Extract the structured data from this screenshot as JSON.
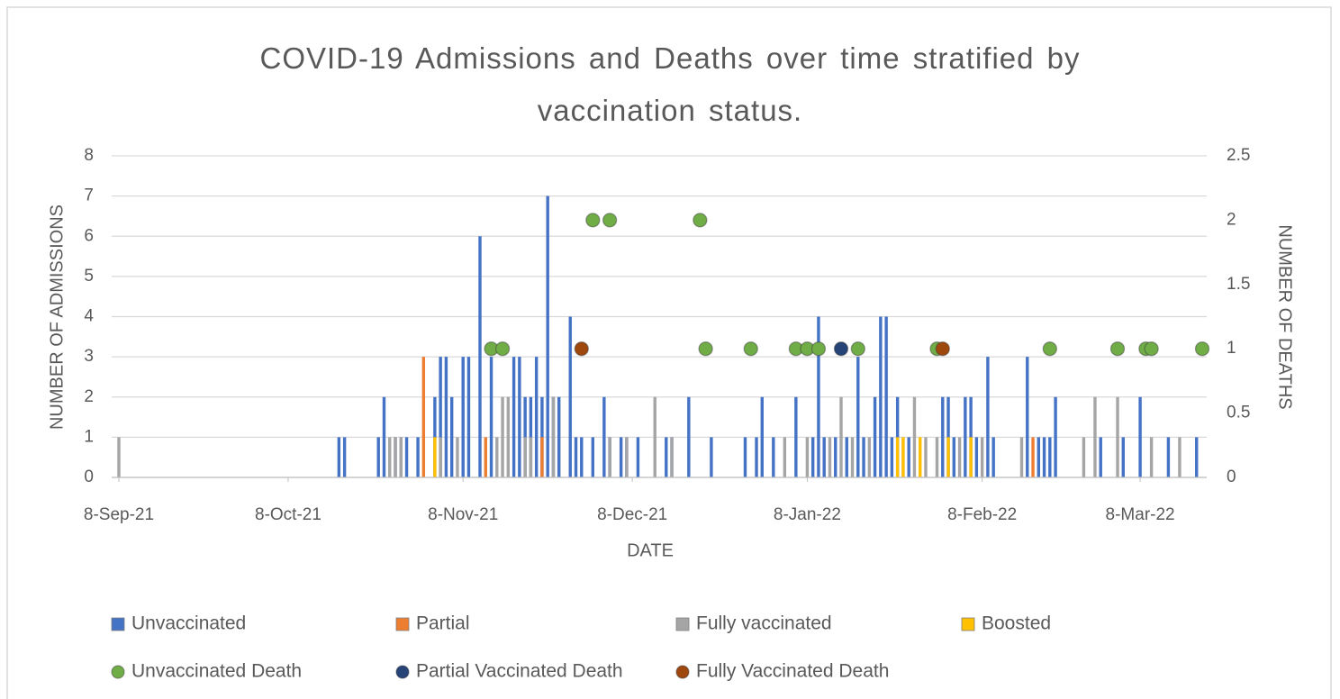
{
  "chart_data": {
    "type": "bar",
    "title": "COVID-19 Admissions and Deaths over time stratified by vaccination status.",
    "x_label": "DATE",
    "y_label": "NUMBER OF ADMISSIONS",
    "y2_label": "NUMBER OF DEATHS",
    "xlim": [
      "2021-09-08",
      "2022-03-19"
    ],
    "xticks": [
      {
        "value": "2021-09-08",
        "label": "8-Sep-21"
      },
      {
        "value": "2021-10-08",
        "label": "8-Oct-21"
      },
      {
        "value": "2021-11-08",
        "label": "8-Nov-21"
      },
      {
        "value": "2021-12-08",
        "label": "8-Dec-21"
      },
      {
        "value": "2022-01-08",
        "label": "8-Jan-22"
      },
      {
        "value": "2022-02-08",
        "label": "8-Feb-22"
      },
      {
        "value": "2022-03-08",
        "label": "8-Mar-22"
      }
    ],
    "ylim": [
      0,
      8
    ],
    "yticks": [
      0,
      1,
      2,
      3,
      4,
      5,
      6,
      7,
      8
    ],
    "y2lim": [
      0,
      2.5
    ],
    "y2ticks": [
      0,
      0.5,
      1,
      1.5,
      2,
      2.5
    ],
    "grid": true,
    "legend": "bottom",
    "series": [
      {
        "name": "Unvaccinated",
        "type": "bar",
        "color": "#4472c4",
        "x": [
          "2021-10-17",
          "2021-10-18",
          "2021-10-24",
          "2021-10-25",
          "2021-10-27",
          "2021-10-28",
          "2021-10-29",
          "2021-10-31",
          "2021-11-03",
          "2021-11-04",
          "2021-11-05",
          "2021-11-06",
          "2021-11-08",
          "2021-11-09",
          "2021-11-11",
          "2021-11-13",
          "2021-11-17",
          "2021-11-18",
          "2021-11-19",
          "2021-11-20",
          "2021-11-21",
          "2021-11-22",
          "2021-11-23",
          "2021-11-24",
          "2021-11-25",
          "2021-11-27",
          "2021-11-28",
          "2021-11-29",
          "2021-12-01",
          "2021-12-03",
          "2021-12-04",
          "2021-12-06",
          "2021-12-07",
          "2021-12-09",
          "2021-12-14",
          "2021-12-15",
          "2021-12-18",
          "2021-12-22",
          "2021-12-28",
          "2021-12-30",
          "2021-12-31",
          "2022-01-02",
          "2022-01-06",
          "2022-01-09",
          "2022-01-10",
          "2022-01-11",
          "2022-01-13",
          "2022-01-15",
          "2022-01-17",
          "2022-01-18",
          "2022-01-20",
          "2022-01-21",
          "2022-01-22",
          "2022-01-23",
          "2022-01-24",
          "2022-01-26",
          "2022-02-01",
          "2022-02-02",
          "2022-02-03",
          "2022-02-05",
          "2022-02-06",
          "2022-02-07",
          "2022-02-09",
          "2022-02-10",
          "2022-02-16",
          "2022-02-18",
          "2022-02-19",
          "2022-02-20",
          "2022-02-21",
          "2022-03-01",
          "2022-03-05",
          "2022-03-08",
          "2022-03-13",
          "2022-03-18"
        ],
        "values": [
          1,
          1,
          1,
          2,
          1,
          1,
          1,
          1,
          2,
          3,
          3,
          2,
          3,
          3,
          6,
          3,
          3,
          3,
          2,
          2,
          3,
          2,
          7,
          2,
          2,
          4,
          1,
          1,
          1,
          2,
          1,
          1,
          1,
          1,
          1,
          1,
          2,
          1,
          1,
          1,
          2,
          1,
          2,
          1,
          4,
          1,
          1,
          1,
          3,
          1,
          2,
          4,
          4,
          1,
          2,
          1,
          2,
          2,
          1,
          2,
          2,
          1,
          3,
          1,
          3,
          1,
          1,
          1,
          2,
          1,
          1,
          2,
          1,
          1
        ]
      },
      {
        "name": "Partial",
        "type": "bar",
        "color": "#ed7d31",
        "x": [
          "2021-11-01",
          "2021-11-12",
          "2021-11-22",
          "2022-02-17"
        ],
        "values": [
          3,
          1,
          1,
          1
        ]
      },
      {
        "name": "Fully vaccinated",
        "type": "bar",
        "color": "#a5a5a5",
        "x": [
          "2021-09-08",
          "2021-10-26",
          "2021-10-27",
          "2021-10-28",
          "2021-11-04",
          "2021-11-07",
          "2021-11-14",
          "2021-11-15",
          "2021-11-16",
          "2021-11-19",
          "2021-11-20",
          "2021-11-24",
          "2021-12-04",
          "2021-12-07",
          "2021-12-12",
          "2021-12-15",
          "2022-01-04",
          "2022-01-08",
          "2022-01-12",
          "2022-01-14",
          "2022-01-16",
          "2022-01-19",
          "2022-01-25",
          "2022-01-27",
          "2022-01-29",
          "2022-01-31",
          "2022-02-04",
          "2022-02-08",
          "2022-02-15",
          "2022-02-26",
          "2022-02-28",
          "2022-03-04",
          "2022-03-10",
          "2022-03-15"
        ],
        "values": [
          1,
          1,
          1,
          1,
          1,
          1,
          1,
          2,
          2,
          1,
          1,
          2,
          1,
          1,
          2,
          1,
          1,
          1,
          1,
          2,
          1,
          1,
          1,
          2,
          1,
          1,
          1,
          1,
          1,
          1,
          2,
          2,
          1,
          1
        ]
      },
      {
        "name": "Boosted",
        "type": "bar",
        "color": "#ffc000",
        "x": [
          "2021-11-03",
          "2022-01-24",
          "2022-01-25",
          "2022-01-28",
          "2022-02-02",
          "2022-02-06"
        ],
        "values": [
          1,
          1,
          1,
          1,
          1,
          1
        ]
      },
      {
        "name": "Unvaccinated Death",
        "type": "scatter",
        "axis": "y2",
        "color": "#70ad47",
        "x": [
          "2021-11-13",
          "2021-11-15",
          "2021-12-01",
          "2021-12-04",
          "2021-12-20",
          "2021-12-21",
          "2021-12-29",
          "2022-01-06",
          "2022-01-08",
          "2022-01-10",
          "2022-01-17",
          "2022-01-31",
          "2022-02-20",
          "2022-03-04",
          "2022-03-09",
          "2022-03-10",
          "2022-03-19"
        ],
        "values": [
          1,
          1,
          2,
          2,
          2,
          1,
          1,
          1,
          1,
          1,
          1,
          1,
          1,
          1,
          1,
          1,
          1
        ]
      },
      {
        "name": "Partial Vaccinated Death",
        "type": "scatter",
        "axis": "y2",
        "color": "#264478",
        "x": [
          "2022-01-14"
        ],
        "values": [
          1
        ]
      },
      {
        "name": "Fully Vaccinated Death",
        "type": "scatter",
        "axis": "y2",
        "color": "#9e480e",
        "x": [
          "2021-11-29",
          "2022-02-01"
        ],
        "values": [
          1,
          1
        ]
      }
    ]
  }
}
